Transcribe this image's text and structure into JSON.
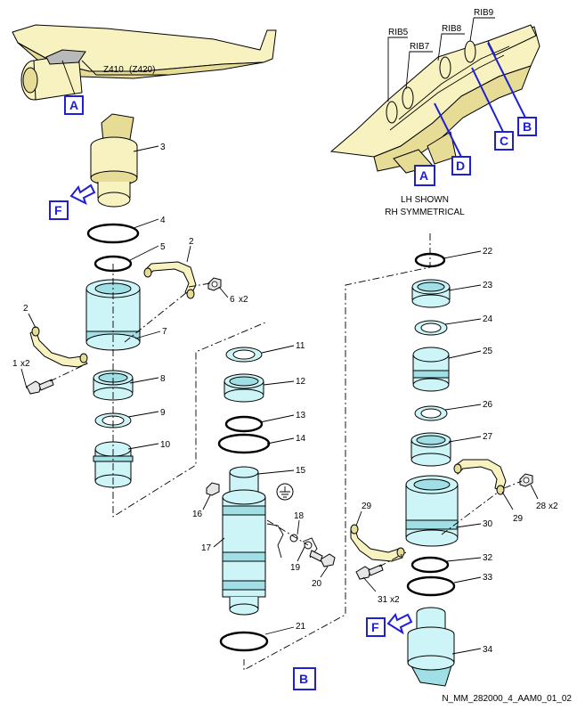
{
  "views": {
    "callout_a": "A",
    "callout_b": "B",
    "callout_c": "C",
    "callout_d": "D",
    "callout_f": "F",
    "view_b_label": "B",
    "view_f_label": "F"
  },
  "zone_label": "Z410",
  "zone_label_alt": "(Z420)",
  "ribs": [
    "RIB5",
    "RIB7",
    "RIB8",
    "RIB9"
  ],
  "note_line1": "LH SHOWN",
  "note_line2": "RH SYMMETRICAL",
  "parts": {
    "p1": "1",
    "p1q": "x2",
    "p2a": "2",
    "p2b": "2",
    "p3": "3",
    "p4": "4",
    "p5": "5",
    "p6": "6",
    "p6q": "x2",
    "p7": "7",
    "p8": "8",
    "p9": "9",
    "p10": "10",
    "p11": "11",
    "p12": "12",
    "p13": "13",
    "p14": "14",
    "p15": "15",
    "p16": "16",
    "p17": "17",
    "p18": "18",
    "p19": "19",
    "p20": "20",
    "p21": "21",
    "p22": "22",
    "p23": "23",
    "p24": "24",
    "p25": "25",
    "p26": "26",
    "p27": "27",
    "p28": "28",
    "p28q": "x2",
    "p29a": "29",
    "p29b": "29",
    "p30": "30",
    "p31": "31",
    "p31q": "x2",
    "p32": "32",
    "p33": "33",
    "p34": "34"
  },
  "figure_ref": "N_MM_282000_4_AAM0_01_02",
  "colors": {
    "callout_blue": "#1f1fd6",
    "part_cyan": "#cdf4f6",
    "airframe_yellow": "#f7f2bf"
  }
}
